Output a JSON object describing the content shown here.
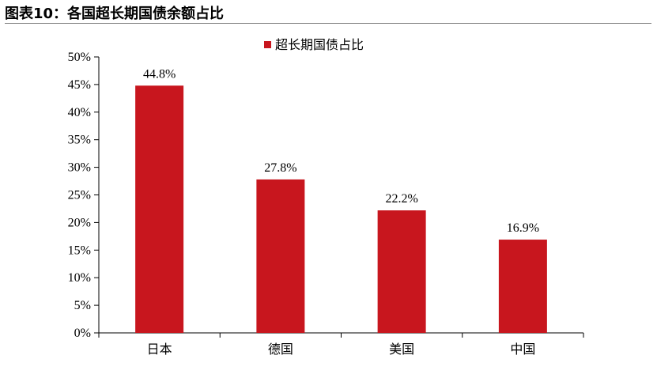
{
  "figure": {
    "title": "图表10：各国超长期国债余额占比"
  },
  "colors": {
    "bar": "#c8161e",
    "axis": "#000000"
  },
  "chart_data": {
    "type": "bar",
    "categories": [
      "日本",
      "德国",
      "美国",
      "中国"
    ],
    "series": [
      {
        "name": "超长期国债占比",
        "values": [
          44.8,
          27.8,
          22.2,
          16.9
        ]
      }
    ],
    "data_labels": [
      "44.8%",
      "27.8%",
      "22.2%",
      "16.9%"
    ],
    "ylim": [
      0,
      50
    ],
    "yticks": [
      0,
      5,
      10,
      15,
      20,
      25,
      30,
      35,
      40,
      45,
      50
    ],
    "ytick_labels": [
      "0%",
      "5%",
      "10%",
      "15%",
      "20%",
      "25%",
      "30%",
      "35%",
      "40%",
      "45%",
      "50%"
    ],
    "legend_position": "top-right",
    "grid": false,
    "xlabel": "",
    "ylabel": ""
  }
}
